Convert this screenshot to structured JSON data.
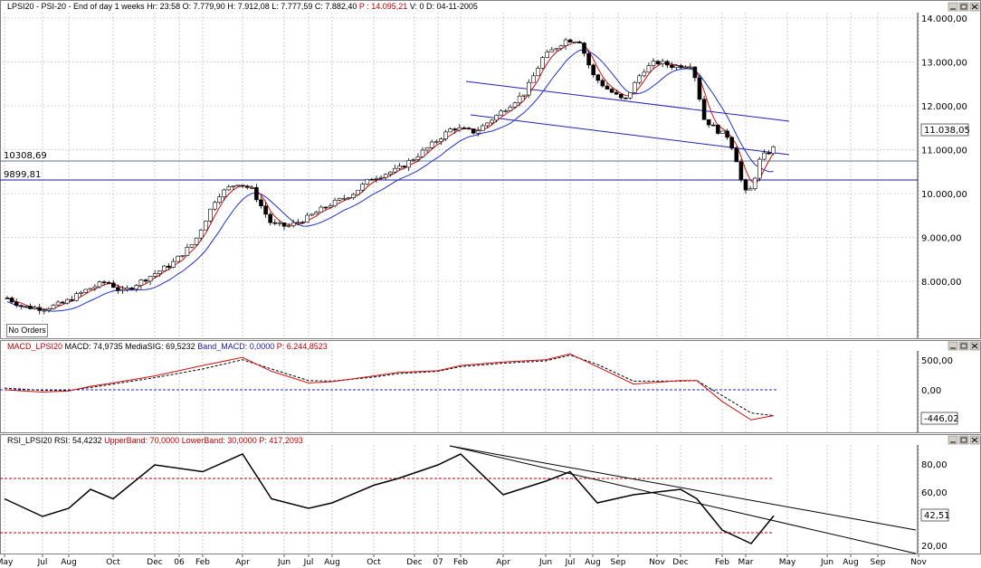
{
  "main_panel": {
    "header": {
      "symbol": "LPSI20",
      "name": "PSI-20",
      "interval": "End of day 1 weeks",
      "hour": "Hr: 23:58",
      "open": "O: 7.779,90",
      "high": "H: 7.912,08",
      "low": "L: 7.777,59",
      "close": "C: 7.882,40",
      "p_value": "P : 14.095,21",
      "volume": "V: 0",
      "date": "D: 04-11-2005"
    },
    "no_orders_button": "No Orders",
    "price_axis": [
      "14.000,00",
      "13.000,00",
      "12.000,00",
      "11.000,00",
      "10.000,00",
      "9.000,00",
      "8.000,00"
    ],
    "current_price_label": "11.038,05",
    "level_lines": [
      {
        "label": "10308,69",
        "value": 10308.69
      },
      {
        "label": "9899,81",
        "value": 9899.81
      }
    ]
  },
  "macd_panel": {
    "header": {
      "name": "MACD_LPSI20",
      "macd": "MACD: 74,9735",
      "signal": "MediaSIG: 69,5232",
      "band": "Band_MACD: 0,0000",
      "p_value": "P: 6.244,8523"
    },
    "axis": [
      "500,00",
      "0,00"
    ],
    "current_label": "-446,02"
  },
  "rsi_panel": {
    "header": {
      "name": "RSI_LPSI20",
      "rsi": "RSI: 54,4232",
      "upper": "UpperBand: 70,0000",
      "lower": "LowerBand: 30,0000",
      "p_value": "P: 417,2093"
    },
    "axis": [
      "80,00",
      "60,00",
      "20,00"
    ],
    "current_label": "42,51"
  },
  "x_axis": {
    "labels": [
      "May",
      "Jul",
      "Aug",
      "Oct",
      "Dec",
      "06",
      "Feb",
      "Apr",
      "Jun",
      "Jul",
      "Aug",
      "Oct",
      "Dec",
      "07",
      "Feb",
      "Apr",
      "Jun",
      "Jul",
      "Aug",
      "Sep",
      "Nov",
      "Dec",
      "Feb",
      "Mar",
      "May",
      "Jun",
      "Aug",
      "Sep",
      "Nov"
    ]
  },
  "colors": {
    "price_line": "#2020c0",
    "ma_red": "#d01010",
    "ma_blue": "#2030d0",
    "signal_dashed": "#000000",
    "band_dashed": "#2020e0",
    "rsi_band": "#c00000",
    "candle_up": "#ffffff",
    "candle_down": "#000000"
  },
  "chart_data": [
    {
      "type": "candlestick",
      "title": "PSI-20",
      "ylim": [
        7100,
        14200
      ],
      "x": [
        "May",
        "Jul",
        "Aug",
        "Oct",
        "Dec",
        "06",
        "Feb",
        "Apr",
        "Jun",
        "Jul",
        "Aug",
        "Oct",
        "Dec",
        "07",
        "Feb",
        "Apr",
        "Jun",
        "Jul",
        "Aug",
        "Sep",
        "Nov",
        "Dec",
        "Feb",
        "Mar",
        "May"
      ],
      "close": [
        7620,
        7380,
        7420,
        7900,
        7850,
        8400,
        8900,
        10200,
        9300,
        9450,
        9700,
        10300,
        10600,
        11100,
        11400,
        12100,
        13200,
        13600,
        12000,
        12700,
        13000,
        12900,
        11000,
        10000,
        11038
      ],
      "series": [
        {
          "name": "Close",
          "values": [
            7620,
            7380,
            7420,
            7900,
            7850,
            8400,
            8900,
            10200,
            9300,
            9450,
            9700,
            10300,
            10600,
            11100,
            11400,
            12100,
            13200,
            13600,
            12000,
            12700,
            13000,
            12900,
            11000,
            10000,
            11038
          ]
        }
      ],
      "hlines": [
        10308.69,
        9899.81
      ]
    },
    {
      "type": "line",
      "title": "MACD_LPSI20",
      "ylim": [
        -600,
        700
      ],
      "series": [
        {
          "name": "MACD",
          "values": [
            0,
            -40,
            -20,
            60,
            120,
            240,
            420,
            560,
            320,
            120,
            140,
            240,
            300,
            330,
            420,
            480,
            520,
            620,
            400,
            100,
            160,
            160,
            -200,
            -520,
            -446
          ]
        },
        {
          "name": "MediaSIG",
          "values": [
            30,
            -10,
            -10,
            40,
            100,
            210,
            360,
            520,
            360,
            160,
            150,
            220,
            280,
            320,
            400,
            460,
            500,
            600,
            440,
            150,
            150,
            160,
            -100,
            -400,
            -446
          ]
        }
      ]
    },
    {
      "type": "line",
      "title": "RSI_LPSI20",
      "ylim": [
        10,
        100
      ],
      "series": [
        {
          "name": "RSI",
          "values": [
            55,
            42,
            48,
            62,
            55,
            80,
            75,
            88,
            55,
            48,
            52,
            65,
            70,
            80,
            88,
            58,
            68,
            75,
            52,
            58,
            62,
            55,
            32,
            22,
            42.51
          ]
        }
      ],
      "bands": {
        "upper": 70,
        "lower": 30
      }
    }
  ]
}
